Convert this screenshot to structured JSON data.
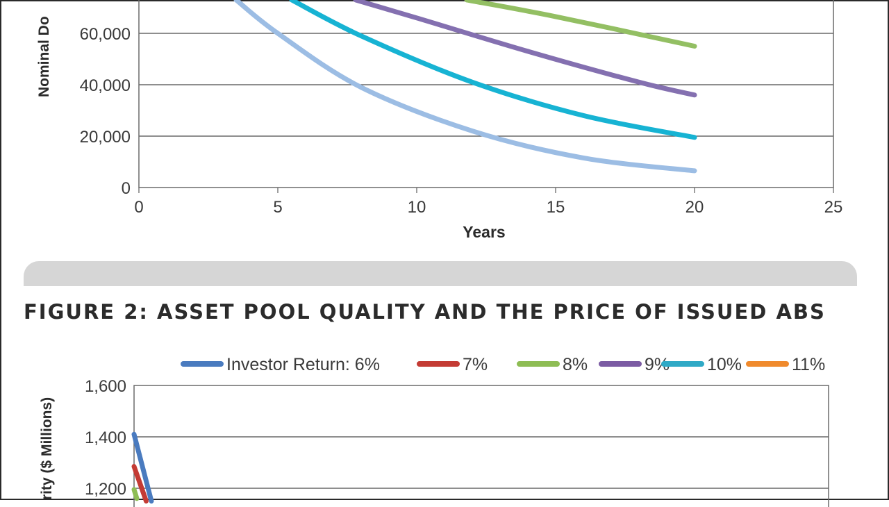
{
  "figure2": {
    "title": "FIGURE 2: ASSET POOL QUALITY AND THE PRICE OF ISSUED ABS"
  },
  "chart_data": [
    {
      "type": "line",
      "title": "",
      "xlabel": "Years",
      "ylabel": "Nominal Do",
      "xlim": [
        0,
        25
      ],
      "ylim_visible": [
        0,
        70000
      ],
      "x_ticks": [
        "0",
        "5",
        "10",
        "15",
        "20",
        "25"
      ],
      "y_ticks": [
        "0",
        "20,000",
        "40,000",
        "60,000"
      ],
      "grid": true,
      "colors": [
        "#9cbde4",
        "#17b3d3",
        "#8470b0",
        "#93bf63"
      ],
      "series": [
        {
          "x": [
            3.5,
            5,
            8,
            12,
            16,
            20
          ],
          "values": [
            73000,
            60000,
            39000,
            22000,
            11500,
            6500
          ]
        },
        {
          "x": [
            5.5,
            8,
            12,
            16,
            20
          ],
          "values": [
            73000,
            59000,
            41000,
            28000,
            19500
          ]
        },
        {
          "x": [
            7.8,
            10,
            14,
            18,
            20
          ],
          "values": [
            73000,
            66000,
            53000,
            41000,
            36000
          ]
        },
        {
          "x": [
            11.8,
            15,
            20
          ],
          "values": [
            73000,
            66500,
            55000
          ]
        }
      ]
    },
    {
      "type": "line",
      "title": "",
      "xlabel": "",
      "ylabel": "rity ($ Millions)",
      "ylim_visible": [
        1150,
        1600
      ],
      "y_ticks": [
        "1,200",
        "1,400",
        "1,600"
      ],
      "grid": true,
      "legend_position": "top",
      "legend": [
        "Investor Return: 6%",
        "7%",
        "8%",
        "9%",
        "10%",
        "11%"
      ],
      "colors": [
        "#4a7bbf",
        "#c43b34",
        "#8ebd54",
        "#7b5ba3",
        "#2fa9c6",
        "#f08a2c"
      ],
      "series": [
        {
          "x": [
            0,
            0.5
          ],
          "values": [
            1410,
            1150
          ]
        },
        {
          "x": [
            0,
            0.35
          ],
          "values": [
            1285,
            1150
          ]
        },
        {
          "x": [
            0,
            0.08
          ],
          "values": [
            1195,
            1160
          ]
        }
      ]
    }
  ]
}
